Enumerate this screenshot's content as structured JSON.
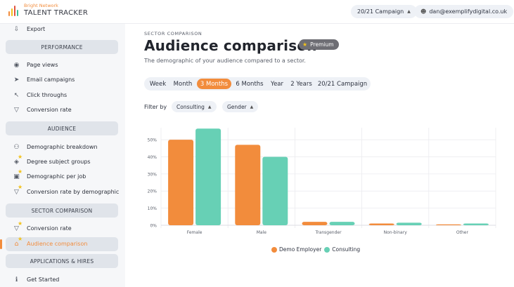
{
  "header": {
    "brand_small": "Bright Network",
    "brand_big": "TALENT TRACKER",
    "campaign_select": "20/21 Campaign",
    "user_email": "dan@exemplifydigital.co.uk"
  },
  "sidebar": {
    "export": "Export",
    "sections": {
      "performance": "PERFORMANCE",
      "audience": "AUDIENCE",
      "sector": "SECTOR COMPARISON",
      "applications": "APPLICATIONS & HIRES"
    },
    "performance_items": [
      "Page views",
      "Email campaigns",
      "Click throughs",
      "Conversion rate"
    ],
    "audience_items": [
      "Demographic breakdown",
      "Degree subject groups",
      "Demographic per job",
      "Conversion rate by demographic"
    ],
    "sector_items": [
      "Conversion rate",
      "Audience comparison"
    ],
    "applications_items": [
      "Get Started"
    ]
  },
  "main": {
    "eyebrow": "SECTOR COMPARISON",
    "title": "Audience comparison",
    "premium_badge": "Premium",
    "subtitle": "The demographic of your audience compared to a sector.",
    "ranges": [
      "Week",
      "Month",
      "3 Months",
      "6 Months",
      "Year",
      "2 Years",
      "20/21 Campaign"
    ],
    "selected_range": "3 Months",
    "filter_label": "Filter by",
    "filters": [
      "Consulting",
      "Gender"
    ]
  },
  "colors": {
    "accent": "#f28c3c",
    "demo_employer": "#f28c3c",
    "consulting": "#67d0b5"
  },
  "chart_data": {
    "type": "bar",
    "categories": [
      "Female",
      "Male",
      "Transgender",
      "Non-binary",
      "Other"
    ],
    "series": [
      {
        "name": "Demo Employer",
        "values": [
          50,
          47,
          2,
          1,
          0.5
        ]
      },
      {
        "name": "Consulting",
        "values": [
          56.5,
          40,
          2,
          1.5,
          1
        ]
      }
    ],
    "yticks": [
      "0%",
      "10%",
      "20%",
      "30%",
      "40%",
      "50%"
    ],
    "ylim": [
      0,
      57
    ],
    "grid": true,
    "legend_position": "bottom"
  }
}
